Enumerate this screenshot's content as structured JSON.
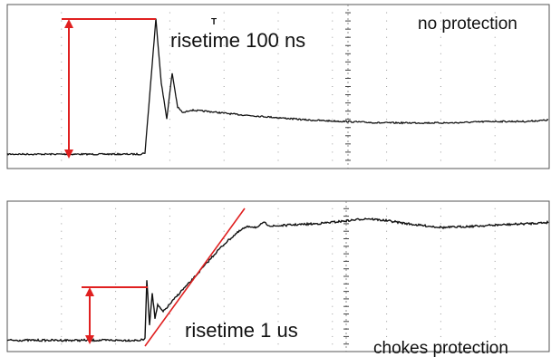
{
  "colors": {
    "trace": "#111111",
    "annotation": "#e02020",
    "grid": "#9a9a9a",
    "frame": "#555555"
  },
  "panels": [
    {
      "label": "no protection",
      "risetime_label": "risetime  100 ns",
      "trigger_marker": "T",
      "rise_start_x": 160,
      "peak_x": 172
    },
    {
      "label": "chokes protection",
      "risetime_label": "risetime  1 us",
      "rise_start_x": 160,
      "plateau_x": 270
    }
  ],
  "chart_data": [
    {
      "type": "line",
      "title": "",
      "series": [
        {
          "name": "",
          "x": [
            0,
            155,
            160,
            172,
            178,
            184,
            190,
            196,
            202,
            210,
            230,
            260,
            300,
            340,
            380,
            420,
            460,
            500,
            540,
            580,
            605
          ],
          "y": [
            0.05,
            0.05,
            0.06,
            1.0,
            0.55,
            0.3,
            0.62,
            0.38,
            0.34,
            0.36,
            0.35,
            0.33,
            0.31,
            0.29,
            0.28,
            0.27,
            0.27,
            0.27,
            0.28,
            0.28,
            0.29
          ]
        }
      ],
      "annotations": [
        "no protection",
        "risetime  100 ns"
      ]
    },
    {
      "type": "line",
      "title": "",
      "series": [
        {
          "name": "",
          "x": [
            0,
            155,
            160,
            162,
            165,
            168,
            171,
            174,
            180,
            190,
            200,
            210,
            220,
            230,
            240,
            250,
            260,
            268,
            275,
            285,
            290,
            300,
            320,
            350,
            380,
            405,
            430,
            460,
            490,
            520,
            550,
            580,
            605
          ],
          "y": [
            0.08,
            0.08,
            0.09,
            0.55,
            0.2,
            0.45,
            0.25,
            0.35,
            0.3,
            0.38,
            0.46,
            0.53,
            0.61,
            0.69,
            0.77,
            0.84,
            0.9,
            0.94,
            0.96,
            0.95,
            0.99,
            0.96,
            0.97,
            0.98,
            1.0,
            1.02,
            1.0,
            0.97,
            0.95,
            0.96,
            0.97,
            0.98,
            0.99
          ]
        }
      ],
      "annotations": [
        "chokes protection",
        "risetime  1 us"
      ]
    }
  ]
}
